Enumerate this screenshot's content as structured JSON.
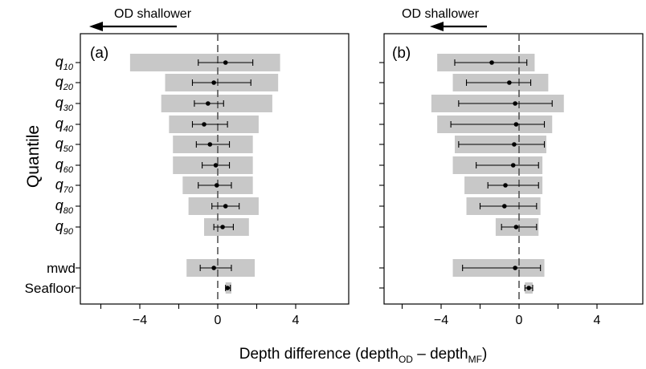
{
  "chart_data": {
    "type": "bar",
    "ylabel": "Quantile",
    "xlabel": {
      "main": "Depth difference (depth",
      "sub1": "OD",
      "mid": " – depth",
      "sub2": "MF",
      "end": ")"
    },
    "annotation": "OD shallower",
    "xlim": [
      -6.8,
      5.2
    ],
    "xticks": [
      "−4",
      "0",
      "4"
    ],
    "xtick_values": [
      -4,
      0,
      4
    ],
    "categories": [
      {
        "label": "q",
        "sub": "10"
      },
      {
        "label": "q",
        "sub": "20"
      },
      {
        "label": "q",
        "sub": "30"
      },
      {
        "label": "q",
        "sub": "40"
      },
      {
        "label": "q",
        "sub": "50"
      },
      {
        "label": "q",
        "sub": "60"
      },
      {
        "label": "q",
        "sub": "70"
      },
      {
        "label": "q",
        "sub": "80"
      },
      {
        "label": "q",
        "sub": "90"
      },
      {
        "label": "mwd",
        "sub": ""
      },
      {
        "label": "Seafloor",
        "sub": ""
      }
    ],
    "colors": {
      "bar": "#c8c8c8",
      "mark": "#000000",
      "zero_line": "#555555"
    },
    "panels": [
      {
        "label": "(a)",
        "range_low": [
          -4.5,
          -2.7,
          -2.9,
          -2.5,
          -2.3,
          -2.3,
          -1.8,
          -1.5,
          -0.7,
          -1.6,
          0.4
        ],
        "range_high": [
          3.2,
          3.1,
          2.8,
          2.1,
          1.8,
          1.8,
          1.8,
          2.1,
          1.6,
          1.9,
          0.7
        ],
        "median": [
          0.4,
          -0.2,
          -0.5,
          -0.7,
          -0.4,
          -0.1,
          -0.05,
          0.4,
          0.25,
          -0.2,
          0.5
        ],
        "err_low": [
          -1.0,
          -1.3,
          -1.2,
          -1.3,
          -1.1,
          -0.8,
          -1.0,
          -0.3,
          -0.2,
          -0.9,
          0.4
        ],
        "err_high": [
          1.8,
          1.7,
          0.3,
          0.5,
          0.6,
          0.6,
          0.7,
          1.1,
          0.8,
          0.7,
          0.65
        ]
      },
      {
        "label": "(b)",
        "range_low": [
          -4.2,
          -3.4,
          -4.5,
          -4.2,
          -3.3,
          -3.4,
          -2.8,
          -2.7,
          -1.2,
          -3.4,
          0.3
        ],
        "range_high": [
          0.8,
          1.5,
          2.3,
          1.7,
          1.4,
          1.2,
          1.2,
          1.1,
          1.0,
          1.3,
          0.7
        ],
        "median": [
          -1.4,
          -0.5,
          -0.2,
          -0.15,
          -0.25,
          -0.3,
          -0.7,
          -0.75,
          -0.15,
          -0.2,
          0.5
        ],
        "err_low": [
          -3.3,
          -2.7,
          -3.1,
          -3.5,
          -3.1,
          -2.2,
          -1.6,
          -2.0,
          -0.9,
          -2.9,
          0.3
        ],
        "err_high": [
          0.4,
          0.6,
          1.7,
          1.3,
          1.3,
          1.0,
          1.0,
          0.9,
          0.9,
          1.1,
          0.7
        ]
      }
    ]
  }
}
